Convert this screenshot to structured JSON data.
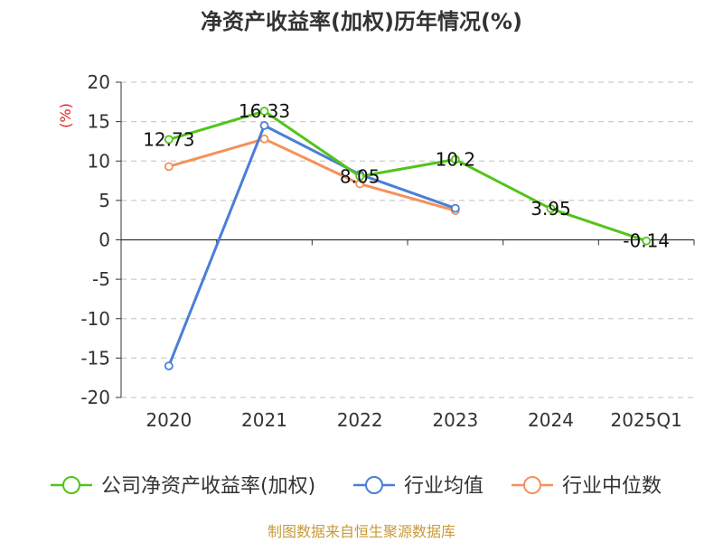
{
  "chart_data": {
    "type": "line",
    "title": "净资产收益率(加权)历年情况(%)",
    "ylabel": "(%)",
    "categories": [
      "2020",
      "2021",
      "2022",
      "2023",
      "2024",
      "2025Q1"
    ],
    "ylim": [
      -20,
      20
    ],
    "yticks": [
      20,
      15,
      10,
      5,
      0,
      -5,
      -10,
      -15,
      -20
    ],
    "grid": true,
    "legend_position": "bottom",
    "series": [
      {
        "name": "公司净资产收益率(加权)",
        "color": "#52c41a",
        "values": [
          12.73,
          16.33,
          8.05,
          10.2,
          3.95,
          -0.14
        ],
        "labels": [
          "12.73",
          "16.33",
          "8.05",
          "10.2",
          "3.95",
          "-0.14"
        ]
      },
      {
        "name": "行业均值",
        "color": "#4a7fd6",
        "values": [
          -16.0,
          14.5,
          8.3,
          4.0,
          null,
          null
        ]
      },
      {
        "name": "行业中位数",
        "color": "#f5915a",
        "values": [
          9.3,
          12.8,
          7.1,
          3.7,
          null,
          null
        ]
      }
    ],
    "source": "制图数据来自恒生聚源数据库"
  }
}
